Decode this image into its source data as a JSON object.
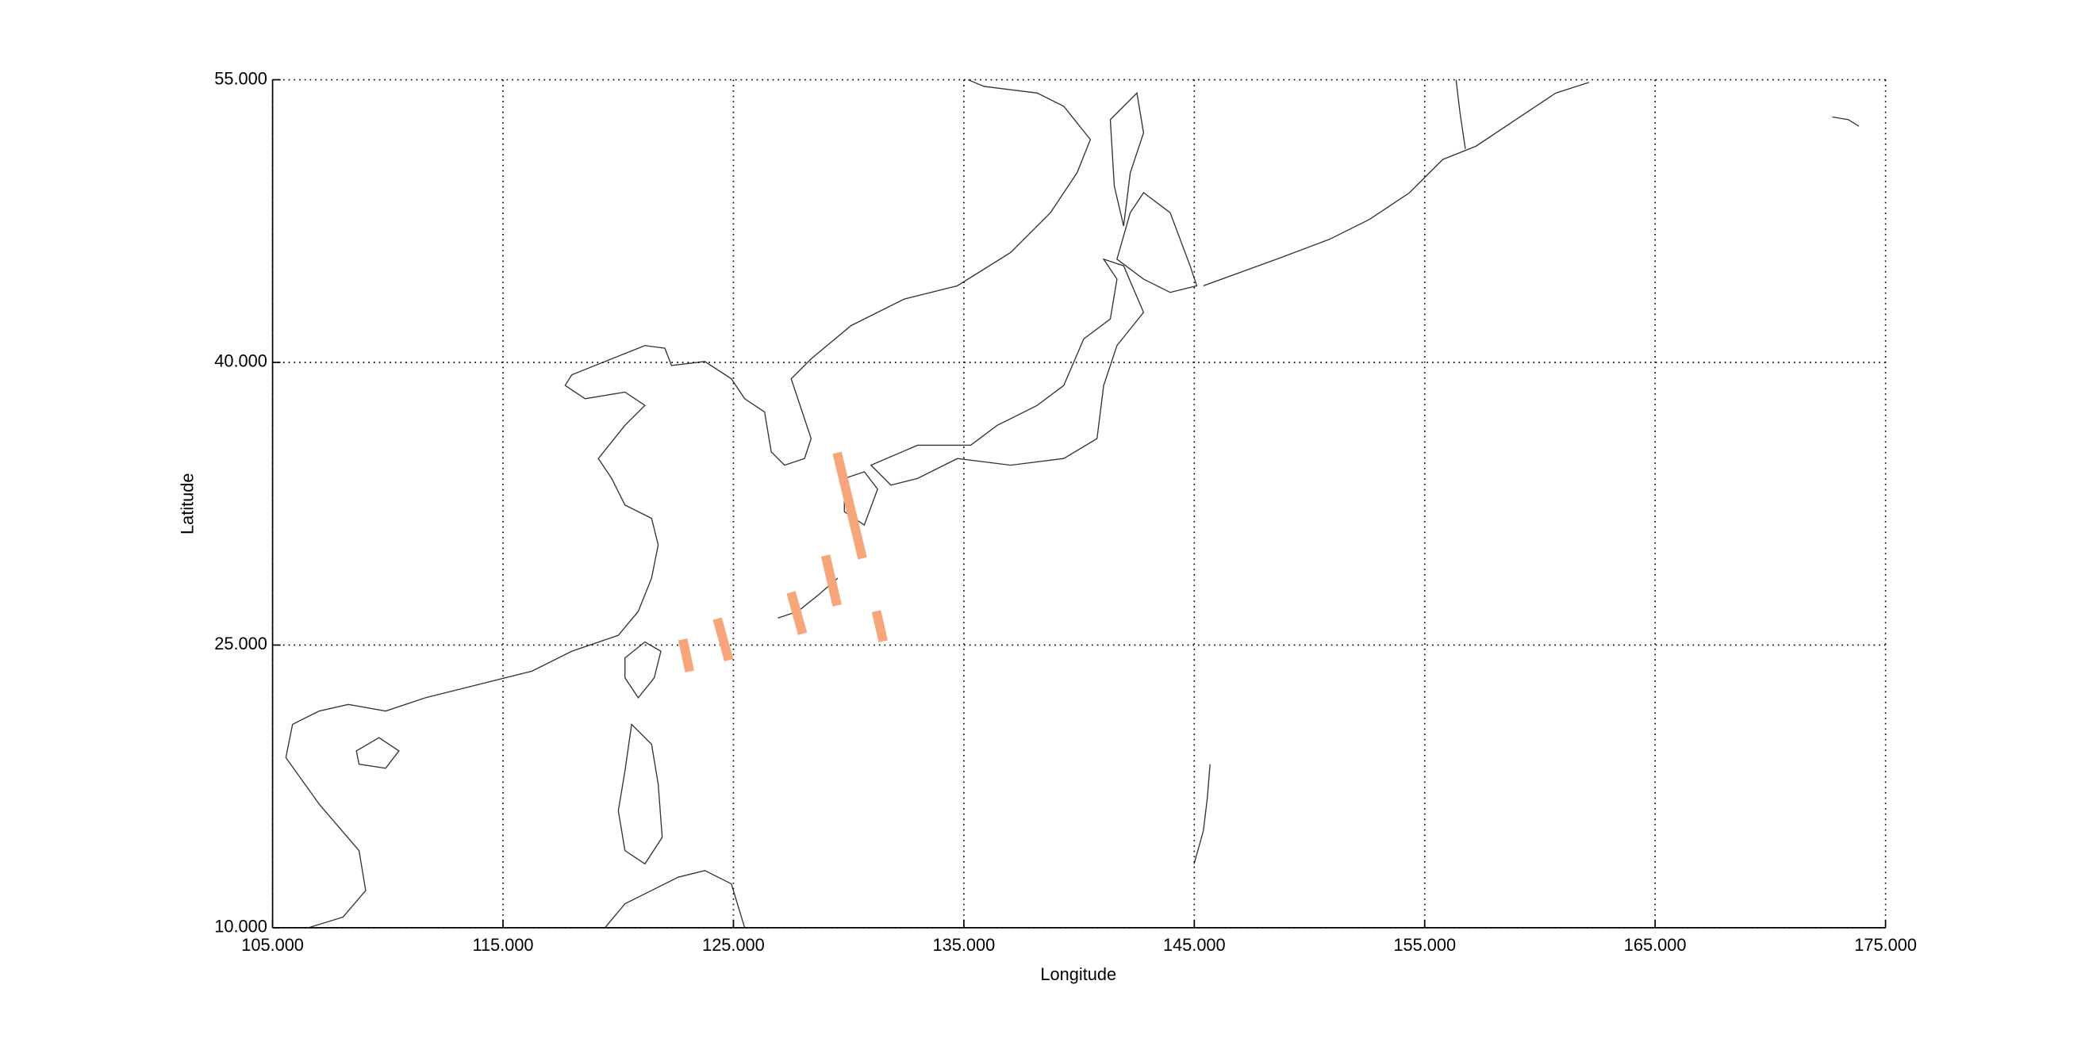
{
  "chart_data": {
    "type": "map",
    "xlabel": "Longitude",
    "ylabel": "Latitude",
    "xlim": [
      105,
      175
    ],
    "ylim": [
      10,
      55
    ],
    "xticks": [
      {
        "value": 105,
        "label": "105.000"
      },
      {
        "value": 115,
        "label": "115.000"
      },
      {
        "value": 125,
        "label": "125.000"
      },
      {
        "value": 135,
        "label": "135.000"
      },
      {
        "value": 145,
        "label": "145.000"
      },
      {
        "value": 155,
        "label": "155.000"
      },
      {
        "value": 165,
        "label": "165.000"
      },
      {
        "value": 175,
        "label": "175.000"
      }
    ],
    "yticks": [
      {
        "value": 10,
        "label": "10.000"
      },
      {
        "value": 25,
        "label": "25.000"
      },
      {
        "value": 40,
        "label": "40.000"
      },
      {
        "value": 55,
        "label": "55.000"
      }
    ],
    "grid": true,
    "color": "#f7a57a",
    "swaths": [
      {
        "lon": [
          129.5,
          130.6
        ],
        "lat": [
          35.2,
          29.6
        ]
      },
      {
        "lon": [
          129.0,
          129.5
        ],
        "lat": [
          29.75,
          27.1
        ]
      },
      {
        "lon": [
          127.5,
          128.0
        ],
        "lat": [
          27.8,
          25.6
        ]
      },
      {
        "lon": [
          131.2,
          131.5
        ],
        "lat": [
          26.8,
          25.2
        ]
      },
      {
        "lon": [
          124.3,
          124.8
        ],
        "lat": [
          26.4,
          24.2
        ]
      },
      {
        "lon": [
          122.8,
          123.1
        ],
        "lat": [
          25.3,
          23.6
        ]
      }
    ]
  }
}
